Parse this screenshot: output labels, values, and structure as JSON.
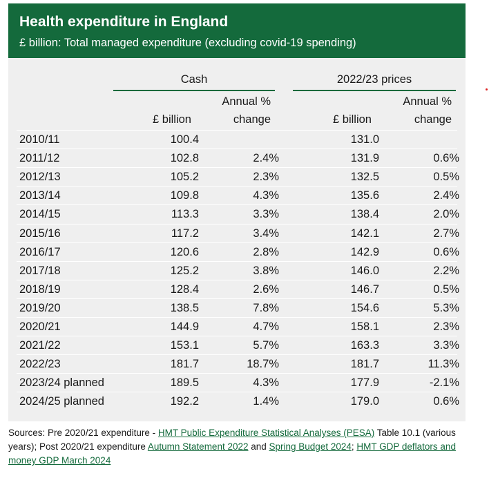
{
  "header": {
    "title": "Health expenditure in England",
    "subtitle": "£ billion: Total managed expenditure (excluding covid-19 spending)"
  },
  "groups": {
    "cash": "Cash",
    "real": "2022/23 prices"
  },
  "columns": {
    "cash_billion": "£ billion",
    "cash_change_1": "Annual %",
    "cash_change_2": "change",
    "real_billion": "£ billion",
    "real_change_1": "Annual %",
    "real_change_2": "change"
  },
  "rows": [
    {
      "year": "2010/11",
      "cash": "100.4",
      "cash_change": "",
      "real": "131.0",
      "real_change": ""
    },
    {
      "year": "2011/12",
      "cash": "102.8",
      "cash_change": "2.4%",
      "real": "131.9",
      "real_change": "0.6%"
    },
    {
      "year": "2012/13",
      "cash": "105.2",
      "cash_change": "2.3%",
      "real": "132.5",
      "real_change": "0.5%"
    },
    {
      "year": "2013/14",
      "cash": "109.8",
      "cash_change": "4.3%",
      "real": "135.6",
      "real_change": "2.4%"
    },
    {
      "year": "2014/15",
      "cash": "113.3",
      "cash_change": "3.3%",
      "real": "138.4",
      "real_change": "2.0%"
    },
    {
      "year": "2015/16",
      "cash": "117.2",
      "cash_change": "3.4%",
      "real": "142.1",
      "real_change": "2.7%"
    },
    {
      "year": "2016/17",
      "cash": "120.6",
      "cash_change": "2.8%",
      "real": "142.9",
      "real_change": "0.6%"
    },
    {
      "year": "2017/18",
      "cash": "125.2",
      "cash_change": "3.8%",
      "real": "146.0",
      "real_change": "2.2%"
    },
    {
      "year": "2018/19",
      "cash": "128.4",
      "cash_change": "2.6%",
      "real": "146.7",
      "real_change": "0.5%"
    },
    {
      "year": "2019/20",
      "cash": "138.5",
      "cash_change": "7.8%",
      "real": "154.6",
      "real_change": "5.3%"
    },
    {
      "year": "2020/21",
      "cash": "144.9",
      "cash_change": "4.7%",
      "real": "158.1",
      "real_change": "2.3%"
    },
    {
      "year": "2021/22",
      "cash": "153.1",
      "cash_change": "5.7%",
      "real": "163.3",
      "real_change": "3.3%"
    },
    {
      "year": "2022/23",
      "cash": "181.7",
      "cash_change": "18.7%",
      "real": "181.7",
      "real_change": "11.3%"
    },
    {
      "year": "2023/24 planned",
      "cash": "189.5",
      "cash_change": "4.3%",
      "real": "177.9",
      "real_change": "-2.1%"
    },
    {
      "year": "2024/25 planned",
      "cash": "192.2",
      "cash_change": "1.4%",
      "real": "179.0",
      "real_change": "0.6%"
    }
  ],
  "sources": {
    "prefix": "Sources:  Pre 2020/21 expenditure - ",
    "link_pesa": "HMT Public Expenditure Statistical Analyses (PESA)",
    "after_pesa": " Table 10.1 (various years); Post 2020/21 expenditure ",
    "link_autumn": "Autumn Statement 2022",
    "and": " and ",
    "link_spring": "Spring Budget 2024",
    "sep": "; ",
    "link_gdp": "HMT GDP deflators and money GDP March 2024"
  },
  "colors": {
    "brand_green": "#146a3c",
    "panel_grey": "#efefef"
  }
}
